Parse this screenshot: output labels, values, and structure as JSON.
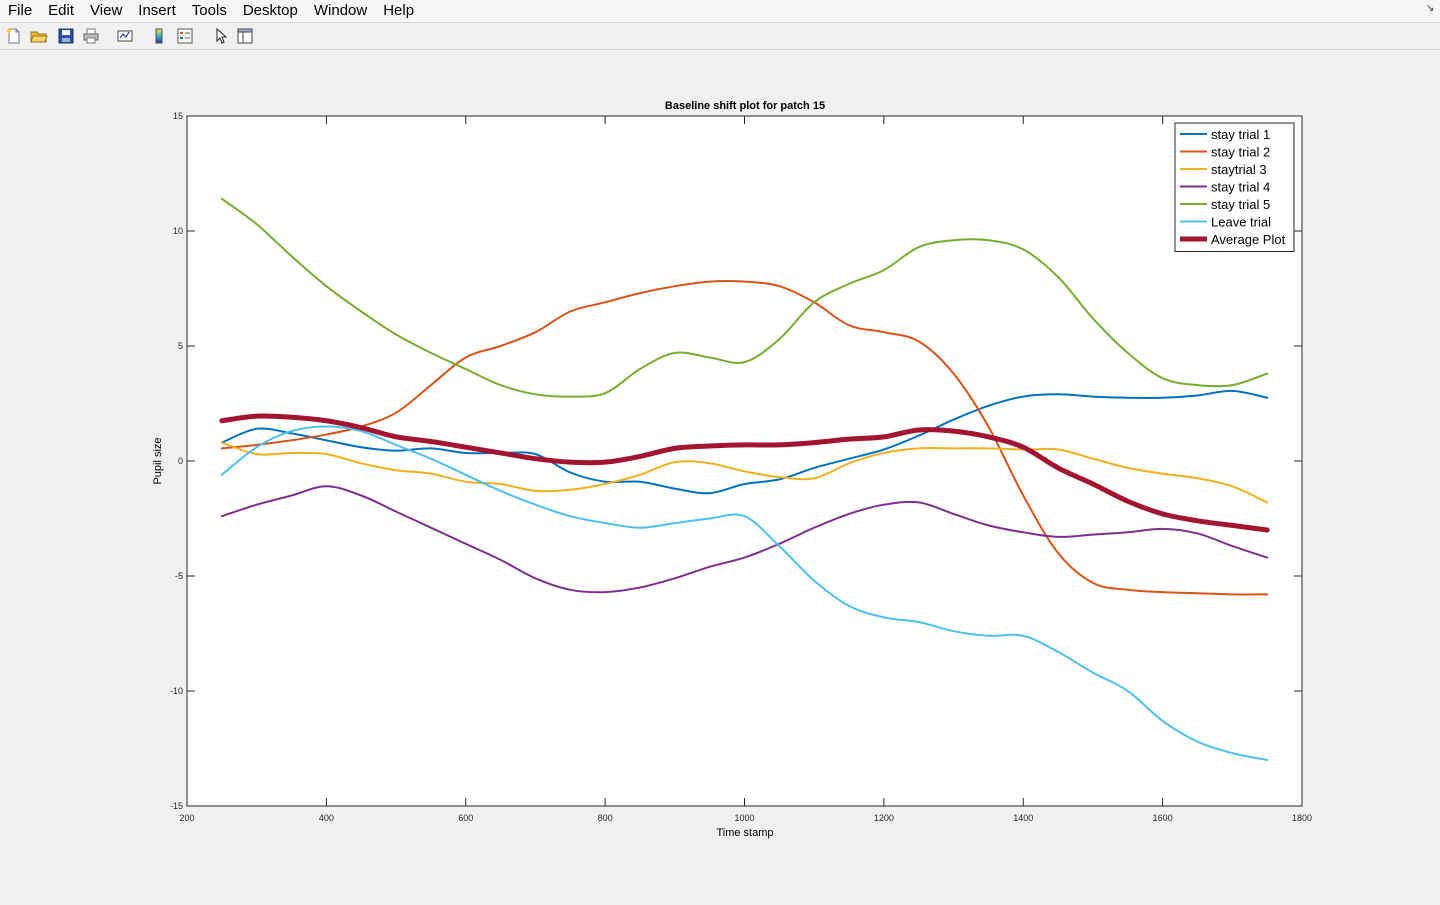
{
  "menu": {
    "items": [
      "File",
      "Edit",
      "View",
      "Insert",
      "Tools",
      "Desktop",
      "Window",
      "Help"
    ],
    "corner_icon": "resize-corner-icon"
  },
  "toolbar": {
    "buttons": [
      {
        "name": "new-figure-icon"
      },
      {
        "name": "open-file-icon"
      },
      {
        "name": "save-icon"
      },
      {
        "name": "print-icon"
      },
      {
        "name": "link-plot-icon"
      },
      {
        "name": "insert-colorbar-icon"
      },
      {
        "name": "insert-legend-icon"
      },
      {
        "name": "edit-plot-cursor-icon"
      },
      {
        "name": "property-inspector-icon"
      }
    ]
  },
  "chart_data": {
    "type": "line",
    "title": "Baseline shift plot for patch 15",
    "xlabel": "Time stamp",
    "ylabel": "Pupil size",
    "xlim": [
      200,
      1800
    ],
    "ylim": [
      -15,
      15
    ],
    "xticks": [
      "200",
      "400",
      "600",
      "800",
      "1000",
      "1200",
      "1400",
      "1600",
      "1800"
    ],
    "yticks": [
      "15",
      "10",
      "5",
      "0",
      "-5",
      "-10",
      "-15"
    ],
    "grid": false,
    "legend_position": "top-right",
    "x": [
      250,
      300,
      350,
      400,
      450,
      500,
      550,
      600,
      650,
      700,
      750,
      800,
      850,
      900,
      950,
      1000,
      1050,
      1100,
      1150,
      1200,
      1250,
      1300,
      1350,
      1400,
      1450,
      1500,
      1550,
      1600,
      1650,
      1700,
      1750
    ],
    "series": [
      {
        "name": "stay trial 1",
        "color": "#0072bd",
        "width": 2,
        "values": [
          0.8,
          1.4,
          1.2,
          0.9,
          0.6,
          0.45,
          0.55,
          0.35,
          0.35,
          0.3,
          -0.5,
          -0.9,
          -0.9,
          -1.2,
          -1.4,
          -1.0,
          -0.8,
          -0.3,
          0.1,
          0.5,
          1.1,
          1.8,
          2.4,
          2.8,
          2.9,
          2.8,
          2.75,
          2.75,
          2.85,
          3.05,
          2.75
        ]
      },
      {
        "name": "stay trial 2",
        "color": "#d95319",
        "width": 2,
        "values": [
          0.55,
          0.7,
          0.9,
          1.15,
          1.5,
          2.1,
          3.3,
          4.5,
          5.0,
          5.6,
          6.5,
          6.9,
          7.3,
          7.6,
          7.8,
          7.8,
          7.6,
          6.9,
          5.9,
          5.6,
          5.2,
          3.8,
          1.5,
          -1.5,
          -4.0,
          -5.3,
          -5.6,
          -5.7,
          -5.75,
          -5.8,
          -5.8
        ]
      },
      {
        "name": "staytrial 3",
        "color": "#edb120",
        "width": 2,
        "values": [
          0.8,
          0.3,
          0.35,
          0.3,
          -0.1,
          -0.4,
          -0.55,
          -0.9,
          -1.0,
          -1.3,
          -1.25,
          -1.0,
          -0.6,
          -0.05,
          -0.1,
          -0.45,
          -0.7,
          -0.75,
          -0.1,
          0.35,
          0.55,
          0.55,
          0.55,
          0.5,
          0.5,
          0.1,
          -0.3,
          -0.55,
          -0.75,
          -1.1,
          -1.8
        ]
      },
      {
        "name": "stay trial 4",
        "color": "#7e2f8e",
        "width": 2,
        "values": [
          -2.4,
          -1.9,
          -1.5,
          -1.1,
          -1.5,
          -2.2,
          -2.9,
          -3.6,
          -4.3,
          -5.1,
          -5.6,
          -5.7,
          -5.5,
          -5.1,
          -4.6,
          -4.2,
          -3.6,
          -2.9,
          -2.3,
          -1.9,
          -1.8,
          -2.3,
          -2.8,
          -3.1,
          -3.3,
          -3.2,
          -3.1,
          -2.95,
          -3.15,
          -3.7,
          -4.2
        ]
      },
      {
        "name": "stay trial 5",
        "color": "#77ac30",
        "width": 2,
        "values": [
          11.4,
          10.3,
          8.9,
          7.6,
          6.5,
          5.5,
          4.7,
          4.0,
          3.3,
          2.9,
          2.8,
          2.95,
          4.0,
          4.7,
          4.5,
          4.3,
          5.3,
          6.9,
          7.7,
          8.3,
          9.3,
          9.6,
          9.6,
          9.2,
          8.0,
          6.2,
          4.7,
          3.6,
          3.3,
          3.3,
          3.8
        ]
      },
      {
        "name": "Leave trial",
        "color": "#4dbeee",
        "width": 2,
        "values": [
          -0.6,
          0.6,
          1.3,
          1.5,
          1.3,
          0.7,
          0.1,
          -0.6,
          -1.3,
          -1.9,
          -2.4,
          -2.7,
          -2.9,
          -2.7,
          -2.5,
          -2.4,
          -3.7,
          -5.2,
          -6.3,
          -6.8,
          -7.0,
          -7.4,
          -7.6,
          -7.6,
          -8.3,
          -9.2,
          -10.0,
          -11.3,
          -12.2,
          -12.7,
          -13.0
        ]
      },
      {
        "name": "Average Plot",
        "color": "#a2142f",
        "width": 5,
        "values": [
          1.75,
          1.95,
          1.9,
          1.75,
          1.45,
          1.05,
          0.85,
          0.6,
          0.35,
          0.1,
          -0.05,
          -0.05,
          0.2,
          0.55,
          0.65,
          0.7,
          0.7,
          0.8,
          0.95,
          1.05,
          1.35,
          1.3,
          1.05,
          0.6,
          -0.3,
          -1.0,
          -1.75,
          -2.3,
          -2.6,
          -2.8,
          -3.0
        ]
      }
    ]
  }
}
